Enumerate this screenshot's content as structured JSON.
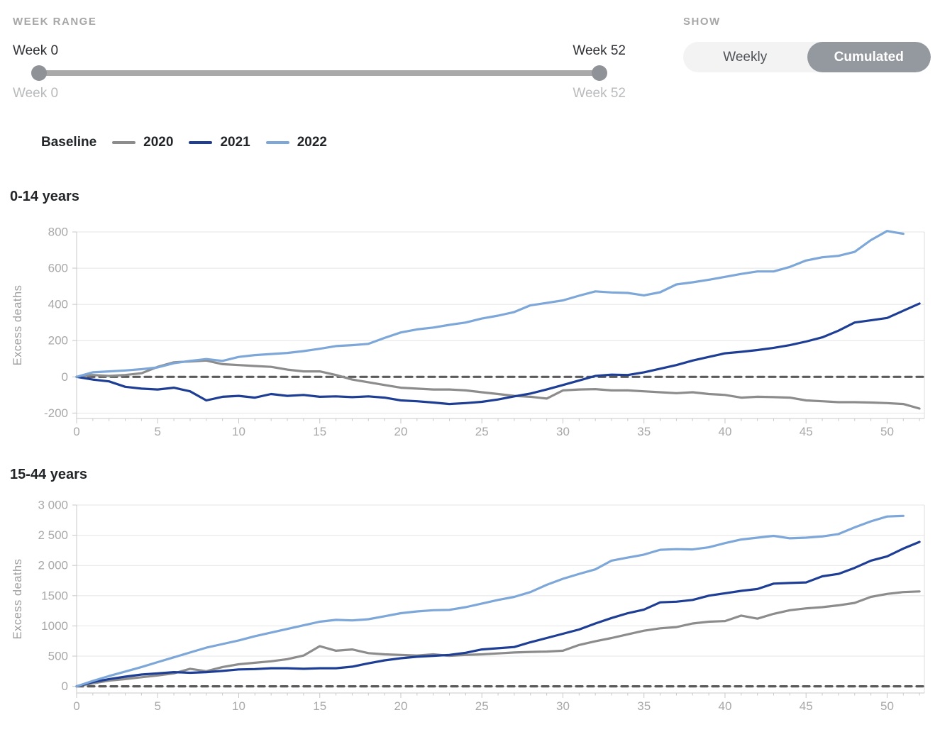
{
  "controls": {
    "week_range": {
      "label": "WEEK RANGE",
      "start_value": "Week 0",
      "end_value": "Week 52",
      "start_sub": "Week 0",
      "end_sub": "Week 52"
    },
    "show": {
      "label": "SHOW",
      "options": [
        {
          "label": "Weekly",
          "selected": false
        },
        {
          "label": "Cumulated",
          "selected": true
        }
      ]
    }
  },
  "legend": [
    {
      "label": "Baseline",
      "style": "dashed",
      "color": "#9a9a9a"
    },
    {
      "label": "2020",
      "style": "solid",
      "color": "#8c8c8c"
    },
    {
      "label": "2021",
      "style": "solid",
      "color": "#1d3e94"
    },
    {
      "label": "2022",
      "style": "solid",
      "color": "#7da7d8"
    }
  ],
  "colors": {
    "baseline": "#5a5a5a",
    "gridline": "#e4e4e4",
    "axis": "#c8c8c8",
    "right_border": "#dcdcdc",
    "tick_text": "#a8a8a8",
    "ylabel_text": "#9e9e9e"
  },
  "chart_data": [
    {
      "type": "line",
      "title": "0-14 years",
      "ylabel": "Excess deaths",
      "xlabel": "",
      "xlim": [
        0,
        52.3
      ],
      "ylim": [
        -230,
        800
      ],
      "xticks": [
        0,
        5,
        10,
        15,
        20,
        25,
        30,
        35,
        40,
        45,
        50
      ],
      "yticks": [
        {
          "v": 800,
          "label": "800"
        },
        {
          "v": 600,
          "label": "600"
        },
        {
          "v": 400,
          "label": "400"
        },
        {
          "v": 200,
          "label": "200"
        },
        {
          "v": 0,
          "label": "0"
        },
        {
          "v": -200,
          "label": "-200"
        }
      ],
      "grid": true,
      "legend_position": "top-left-of-page",
      "series": [
        {
          "name": "Baseline",
          "color": "#5a5a5a",
          "dash": "9 7",
          "x": [
            0,
            52.3
          ],
          "values": [
            0,
            0
          ]
        },
        {
          "name": "2020",
          "color": "#8c8c8c",
          "values": [
            0,
            10,
            5,
            10,
            20,
            55,
            80,
            85,
            90,
            70,
            65,
            60,
            55,
            40,
            30,
            30,
            10,
            -15,
            -30,
            -45,
            -60,
            -65,
            -70,
            -70,
            -75,
            -85,
            -95,
            -105,
            -110,
            -120,
            -75,
            -70,
            -68,
            -75,
            -75,
            -80,
            -85,
            -90,
            -85,
            -95,
            -100,
            -115,
            -110,
            -112,
            -115,
            -130,
            -135,
            -140,
            -140,
            -142,
            -145,
            -150,
            -175
          ]
        },
        {
          "name": "2021",
          "color": "#1d3e94",
          "values": [
            0,
            -15,
            -25,
            -55,
            -65,
            -70,
            -60,
            -80,
            -130,
            -110,
            -105,
            -115,
            -95,
            -105,
            -100,
            -110,
            -108,
            -112,
            -108,
            -115,
            -130,
            -135,
            -142,
            -150,
            -145,
            -138,
            -125,
            -108,
            -92,
            -70,
            -45,
            -20,
            5,
            12,
            10,
            25,
            45,
            65,
            90,
            110,
            130,
            138,
            148,
            160,
            175,
            195,
            218,
            255,
            300,
            312,
            325,
            365,
            405
          ]
        },
        {
          "name": "2022",
          "color": "#7da7d8",
          "values": [
            0,
            25,
            30,
            35,
            42,
            52,
            75,
            88,
            98,
            88,
            110,
            120,
            126,
            132,
            142,
            155,
            170,
            175,
            182,
            215,
            245,
            262,
            272,
            287,
            300,
            322,
            338,
            358,
            395,
            408,
            422,
            448,
            472,
            466,
            463,
            450,
            467,
            510,
            522,
            536,
            552,
            568,
            582,
            582,
            607,
            642,
            660,
            668,
            690,
            755,
            805,
            790
          ]
        }
      ]
    },
    {
      "type": "line",
      "title": "15-44 years",
      "ylabel": "Excess deaths",
      "xlabel": "",
      "xlim": [
        0,
        52.3
      ],
      "ylim": [
        -110,
        3000
      ],
      "xticks": [
        0,
        5,
        10,
        15,
        20,
        25,
        30,
        35,
        40,
        45,
        50
      ],
      "yticks": [
        {
          "v": 3000,
          "label": "3 000"
        },
        {
          "v": 2500,
          "label": "2 500"
        },
        {
          "v": 2000,
          "label": "2 000"
        },
        {
          "v": 1500,
          "label": "1500"
        },
        {
          "v": 1000,
          "label": "1000"
        },
        {
          "v": 500,
          "label": "500"
        },
        {
          "v": 0,
          "label": "0"
        }
      ],
      "grid": true,
      "legend_position": "top-left-of-page",
      "series": [
        {
          "name": "Baseline",
          "color": "#5a5a5a",
          "dash": "9 7",
          "x": [
            0,
            52.3
          ],
          "values": [
            0,
            0
          ]
        },
        {
          "name": "2020",
          "color": "#8c8c8c",
          "values": [
            0,
            50,
            95,
            120,
            150,
            180,
            215,
            290,
            250,
            320,
            365,
            390,
            415,
            450,
            510,
            665,
            590,
            610,
            550,
            530,
            520,
            510,
            530,
            505,
            520,
            530,
            545,
            560,
            570,
            575,
            590,
            685,
            745,
            800,
            860,
            920,
            960,
            980,
            1040,
            1070,
            1080,
            1170,
            1120,
            1200,
            1260,
            1290,
            1310,
            1340,
            1380,
            1480,
            1530,
            1560,
            1570
          ]
        },
        {
          "name": "2021",
          "color": "#1d3e94",
          "values": [
            0,
            70,
            120,
            160,
            195,
            215,
            235,
            225,
            235,
            255,
            280,
            285,
            300,
            300,
            290,
            300,
            300,
            325,
            380,
            430,
            465,
            490,
            505,
            520,
            555,
            610,
            630,
            650,
            730,
            800,
            870,
            940,
            1040,
            1130,
            1210,
            1270,
            1390,
            1400,
            1430,
            1500,
            1540,
            1580,
            1610,
            1700,
            1710,
            1720,
            1820,
            1860,
            1960,
            2080,
            2150,
            2280,
            2390
          ]
        },
        {
          "name": "2022",
          "color": "#7da7d8",
          "values": [
            0,
            90,
            170,
            245,
            320,
            400,
            480,
            560,
            640,
            700,
            760,
            830,
            890,
            950,
            1010,
            1070,
            1100,
            1090,
            1110,
            1160,
            1210,
            1240,
            1260,
            1265,
            1310,
            1370,
            1430,
            1480,
            1560,
            1680,
            1780,
            1860,
            1935,
            2080,
            2130,
            2180,
            2260,
            2270,
            2265,
            2300,
            2370,
            2430,
            2460,
            2490,
            2450,
            2460,
            2480,
            2520,
            2630,
            2730,
            2810,
            2820
          ]
        }
      ]
    }
  ]
}
